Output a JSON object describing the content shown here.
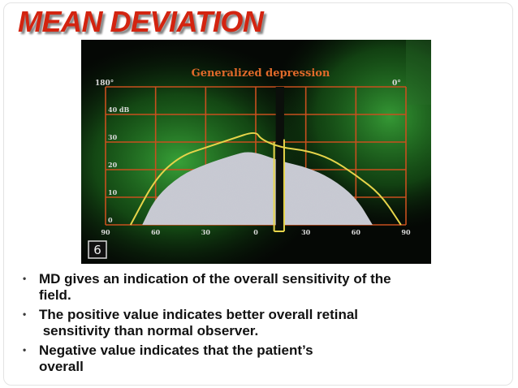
{
  "slide": {
    "title": "MEAN DEVIATION",
    "bullets": [
      {
        "line1": "MD gives an indication of the overall sensitivity of the",
        "line2": "field."
      },
      {
        "line1": "The positive value indicates better overall retinal",
        "line2": " sensitivity than normal observer."
      },
      {
        "line1": "Negative value indicates that the patient’s",
        "line2": "overall"
      }
    ]
  },
  "figure": {
    "title": "Generalized depression",
    "top_left_label": "180°",
    "top_right_label": "0°",
    "panel_number": "6",
    "colors": {
      "grid": "#c8501e",
      "title": "#e06a2a",
      "curve": "#e6d44a",
      "field": "#c9cbd4",
      "glow": "#2f9a2f",
      "labels": "#dcdcdc"
    },
    "chart_data": {
      "type": "area",
      "title": "Generalized depression",
      "x_ticks": [
        "90",
        "60",
        "30",
        "0",
        "30",
        "60",
        "90"
      ],
      "y_ticks": [
        "0",
        "10",
        "20",
        "30",
        "40 dB"
      ],
      "xlim": [
        -90,
        90
      ],
      "ylim": [
        0,
        50
      ],
      "grid": true,
      "series": [
        {
          "x": [
            -75,
            -60,
            -45,
            -30,
            -15,
            0,
            3,
            15,
            30,
            45,
            60,
            75,
            87
          ],
          "y": [
            0,
            17,
            25,
            28,
            31,
            34,
            31,
            28,
            27,
            24,
            18,
            11,
            0
          ]
        },
        {
          "x": [
            -68,
            -60,
            -45,
            -30,
            -15,
            -3,
            15,
            30,
            45,
            60,
            70
          ],
          "y": [
            0,
            10,
            18,
            22,
            25,
            27,
            23,
            21,
            17,
            10,
            0
          ]
        }
      ]
    }
  }
}
